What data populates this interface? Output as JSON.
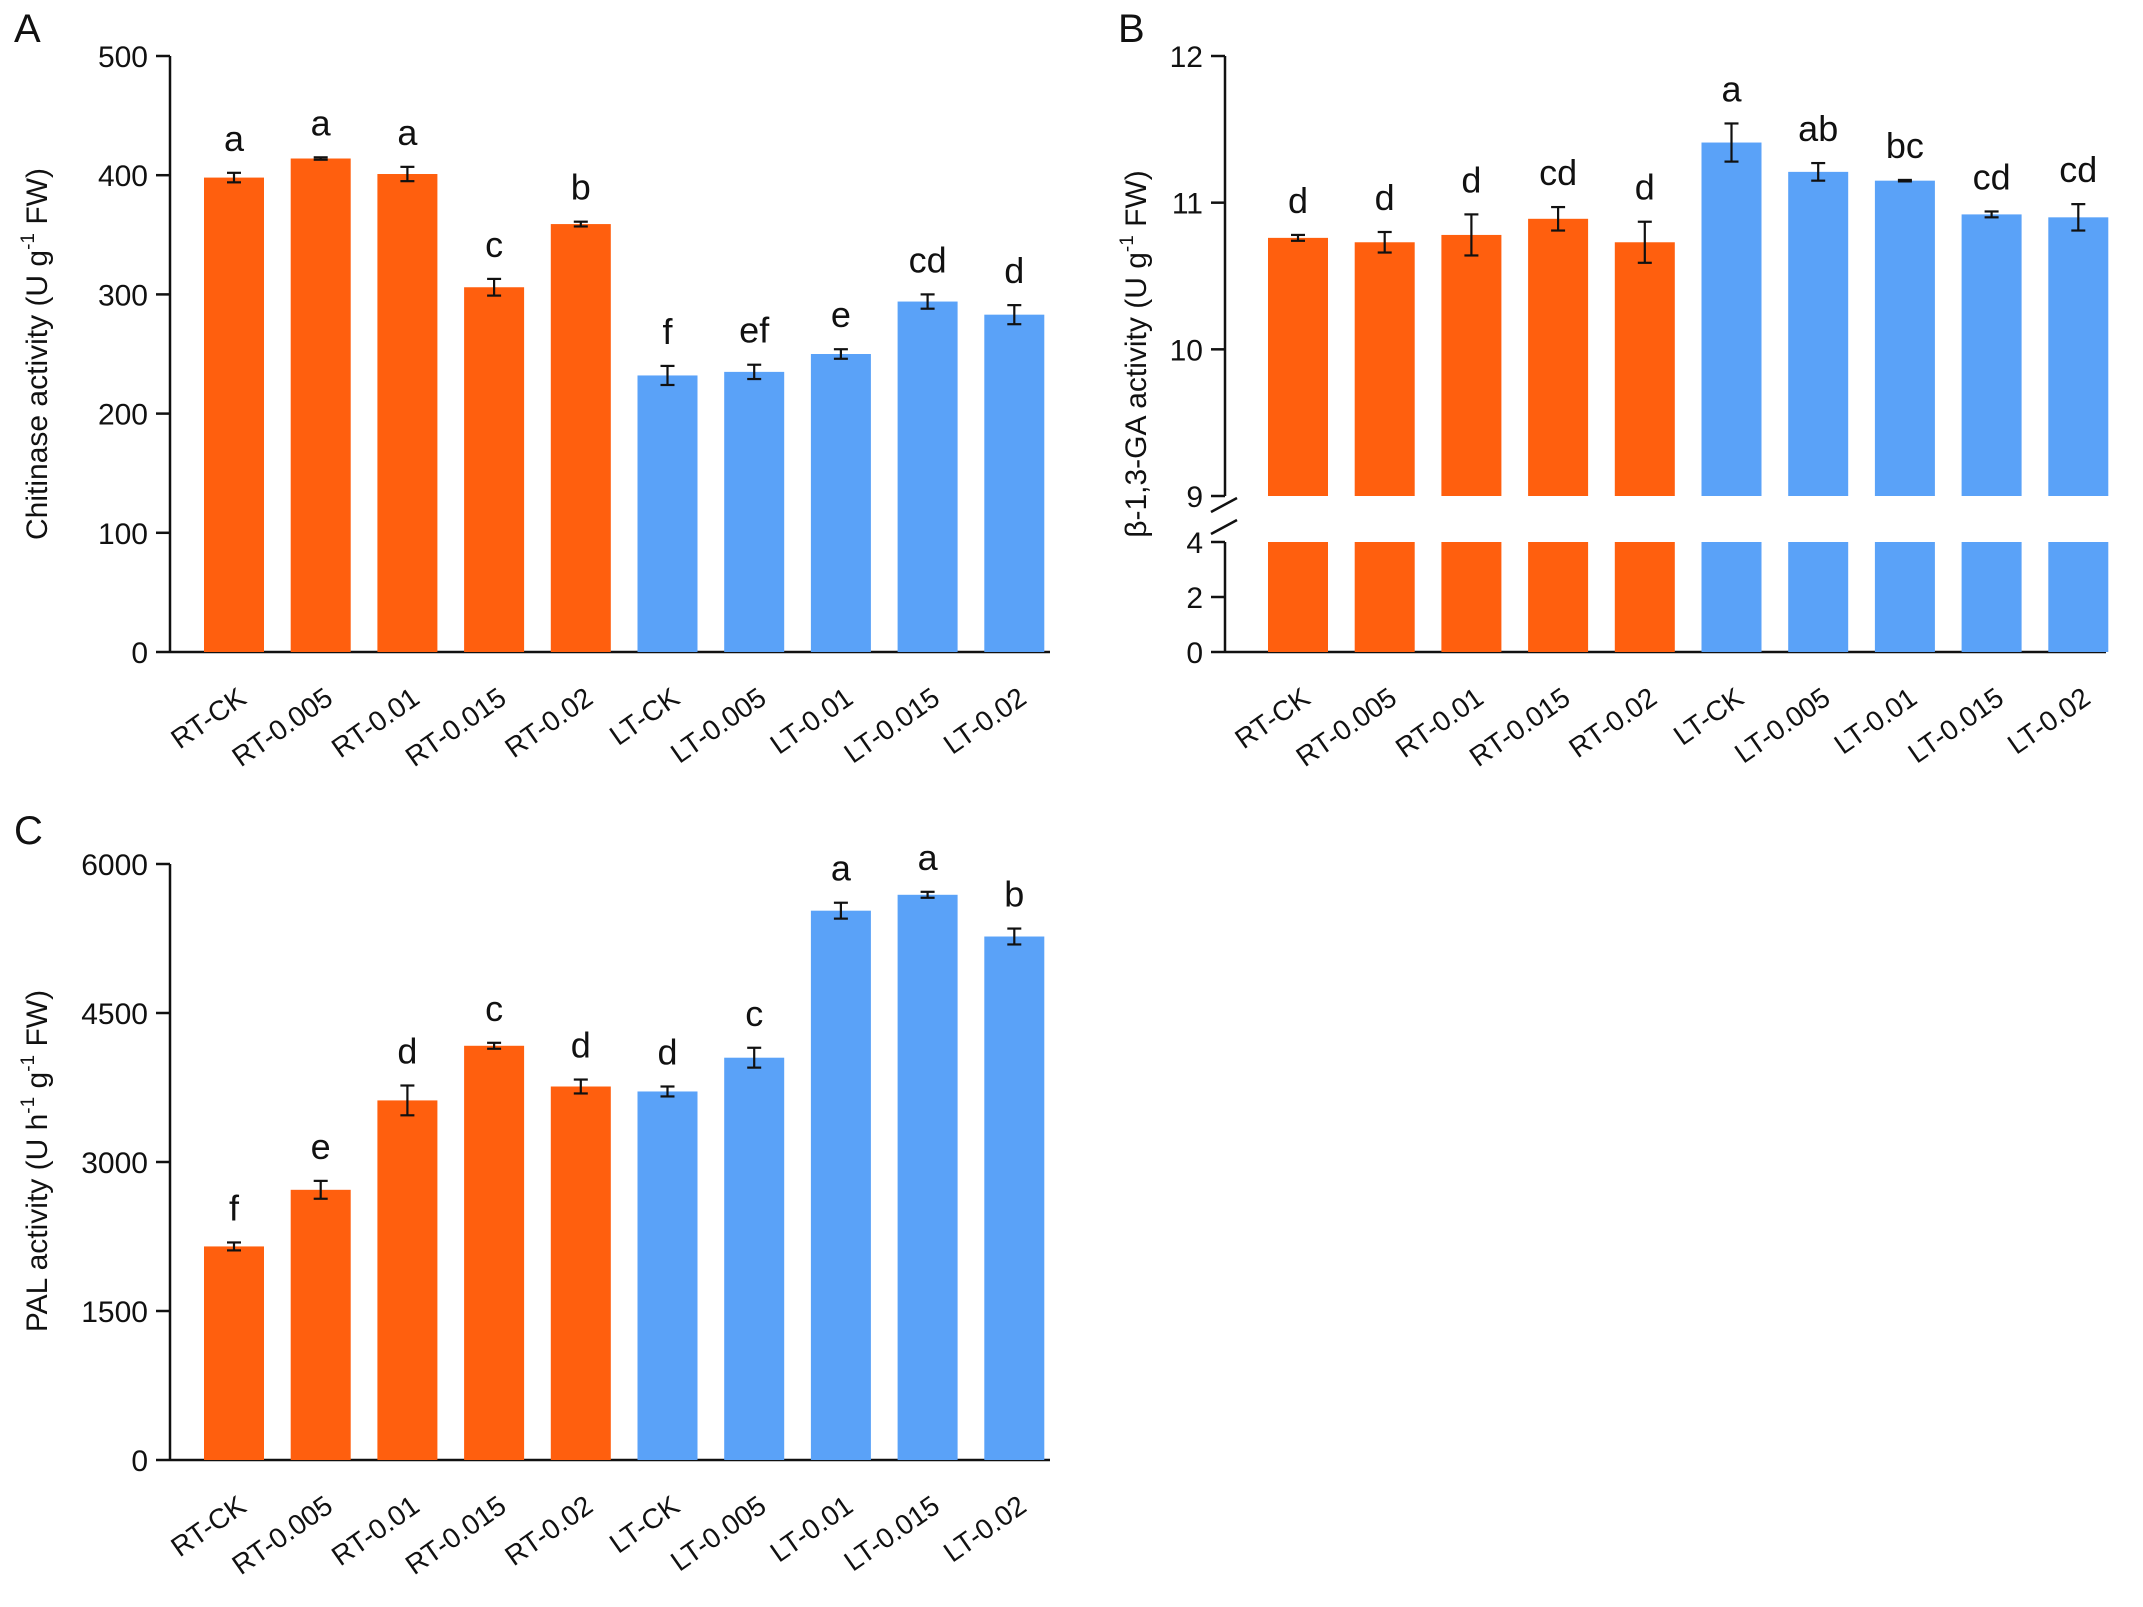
{
  "colors": {
    "rt": "#ff5f0e",
    "lt": "#5aa2f8",
    "axis": "#111111",
    "background": "#ffffff"
  },
  "chart_data": [
    {
      "type": "bar",
      "panel": "A",
      "title": "",
      "ylabel_parts": [
        "Chitinase activity (U g",
        "-1",
        " FW)"
      ],
      "ylim": [
        0,
        500
      ],
      "yticks": [
        0,
        100,
        200,
        300,
        400,
        500
      ],
      "categories": [
        "RT-CK",
        "RT-0.005",
        "RT-0.01",
        "RT-0.015",
        "RT-0.02",
        "LT-CK",
        "LT-0.005",
        "LT-0.01",
        "LT-0.015",
        "LT-0.02"
      ],
      "values": [
        398,
        414,
        401,
        306,
        359,
        232,
        235,
        250,
        294,
        283
      ],
      "errors": [
        4,
        1,
        6,
        7,
        2,
        8,
        6,
        4,
        6,
        8
      ],
      "letters": [
        "a",
        "a",
        "a",
        "c",
        "b",
        "f",
        "ef",
        "e",
        "cd",
        "d"
      ],
      "groups": [
        "RT",
        "RT",
        "RT",
        "RT",
        "RT",
        "LT",
        "LT",
        "LT",
        "LT",
        "LT"
      ]
    },
    {
      "type": "bar",
      "panel": "B",
      "title": "",
      "ylabel_parts": [
        "β-1,3-GA activity (U g",
        "-1",
        " FW)"
      ],
      "axis_break": true,
      "ylim_lower": [
        0,
        4
      ],
      "yticks_lower": [
        0,
        2,
        4
      ],
      "ylim_upper": [
        9,
        12
      ],
      "yticks_upper": [
        9,
        10,
        11,
        12
      ],
      "categories": [
        "RT-CK",
        "RT-0.005",
        "RT-0.01",
        "RT-0.015",
        "RT-0.02",
        "LT-CK",
        "LT-0.005",
        "LT-0.01",
        "LT-0.015",
        "LT-0.02"
      ],
      "values": [
        10.76,
        10.73,
        10.78,
        10.89,
        10.73,
        11.41,
        11.21,
        11.15,
        10.92,
        10.9
      ],
      "errors": [
        0.02,
        0.07,
        0.14,
        0.08,
        0.14,
        0.13,
        0.06,
        0.005,
        0.02,
        0.09
      ],
      "letters": [
        "d",
        "d",
        "d",
        "cd",
        "d",
        "a",
        "ab",
        "bc",
        "cd",
        "cd"
      ],
      "groups": [
        "RT",
        "RT",
        "RT",
        "RT",
        "RT",
        "LT",
        "LT",
        "LT",
        "LT",
        "LT"
      ]
    },
    {
      "type": "bar",
      "panel": "C",
      "title": "",
      "ylabel_parts": [
        "PAL activity (U h",
        "-1",
        " g",
        "-1",
        " FW)"
      ],
      "ylim": [
        0,
        6000
      ],
      "yticks": [
        0,
        1500,
        3000,
        4500,
        6000
      ],
      "categories": [
        "RT-CK",
        "RT-0.005",
        "RT-0.01",
        "RT-0.015",
        "RT-0.02",
        "LT-CK",
        "LT-0.005",
        "LT-0.01",
        "LT-0.015",
        "LT-0.02"
      ],
      "values": [
        2150,
        2720,
        3620,
        4170,
        3760,
        3710,
        4050,
        5530,
        5690,
        5270
      ],
      "errors": [
        40,
        90,
        150,
        30,
        70,
        50,
        100,
        80,
        30,
        80
      ],
      "letters": [
        "f",
        "e",
        "d",
        "c",
        "d",
        "d",
        "c",
        "a",
        "a",
        "b"
      ],
      "groups": [
        "RT",
        "RT",
        "RT",
        "RT",
        "RT",
        "LT",
        "LT",
        "LT",
        "LT",
        "LT"
      ]
    }
  ]
}
